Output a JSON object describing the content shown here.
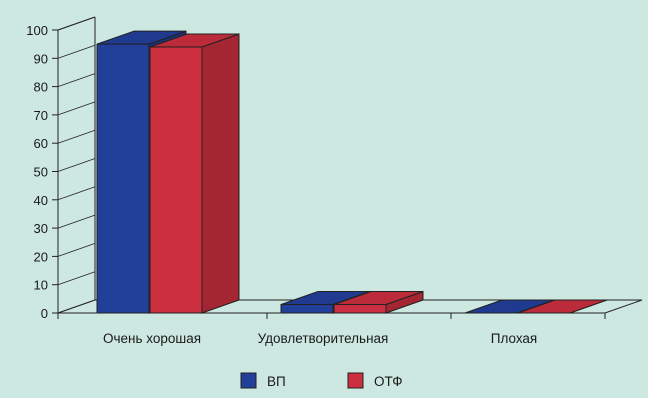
{
  "chart_data": {
    "type": "bar",
    "categories": [
      "Очень хорошая",
      "Удовлетворительная",
      "Плохая"
    ],
    "series": [
      {
        "name": "ВП",
        "values": [
          95,
          3,
          0
        ],
        "color": "#223f9a"
      },
      {
        "name": "ОТФ",
        "values": [
          94,
          3,
          0
        ],
        "color": "#cc2f3f"
      }
    ],
    "ylim": [
      0,
      100
    ],
    "yticks": [
      0,
      10,
      20,
      30,
      40,
      50,
      60,
      70,
      80,
      90,
      100
    ],
    "three_d": true,
    "legend_position": "bottom",
    "grid": false
  }
}
